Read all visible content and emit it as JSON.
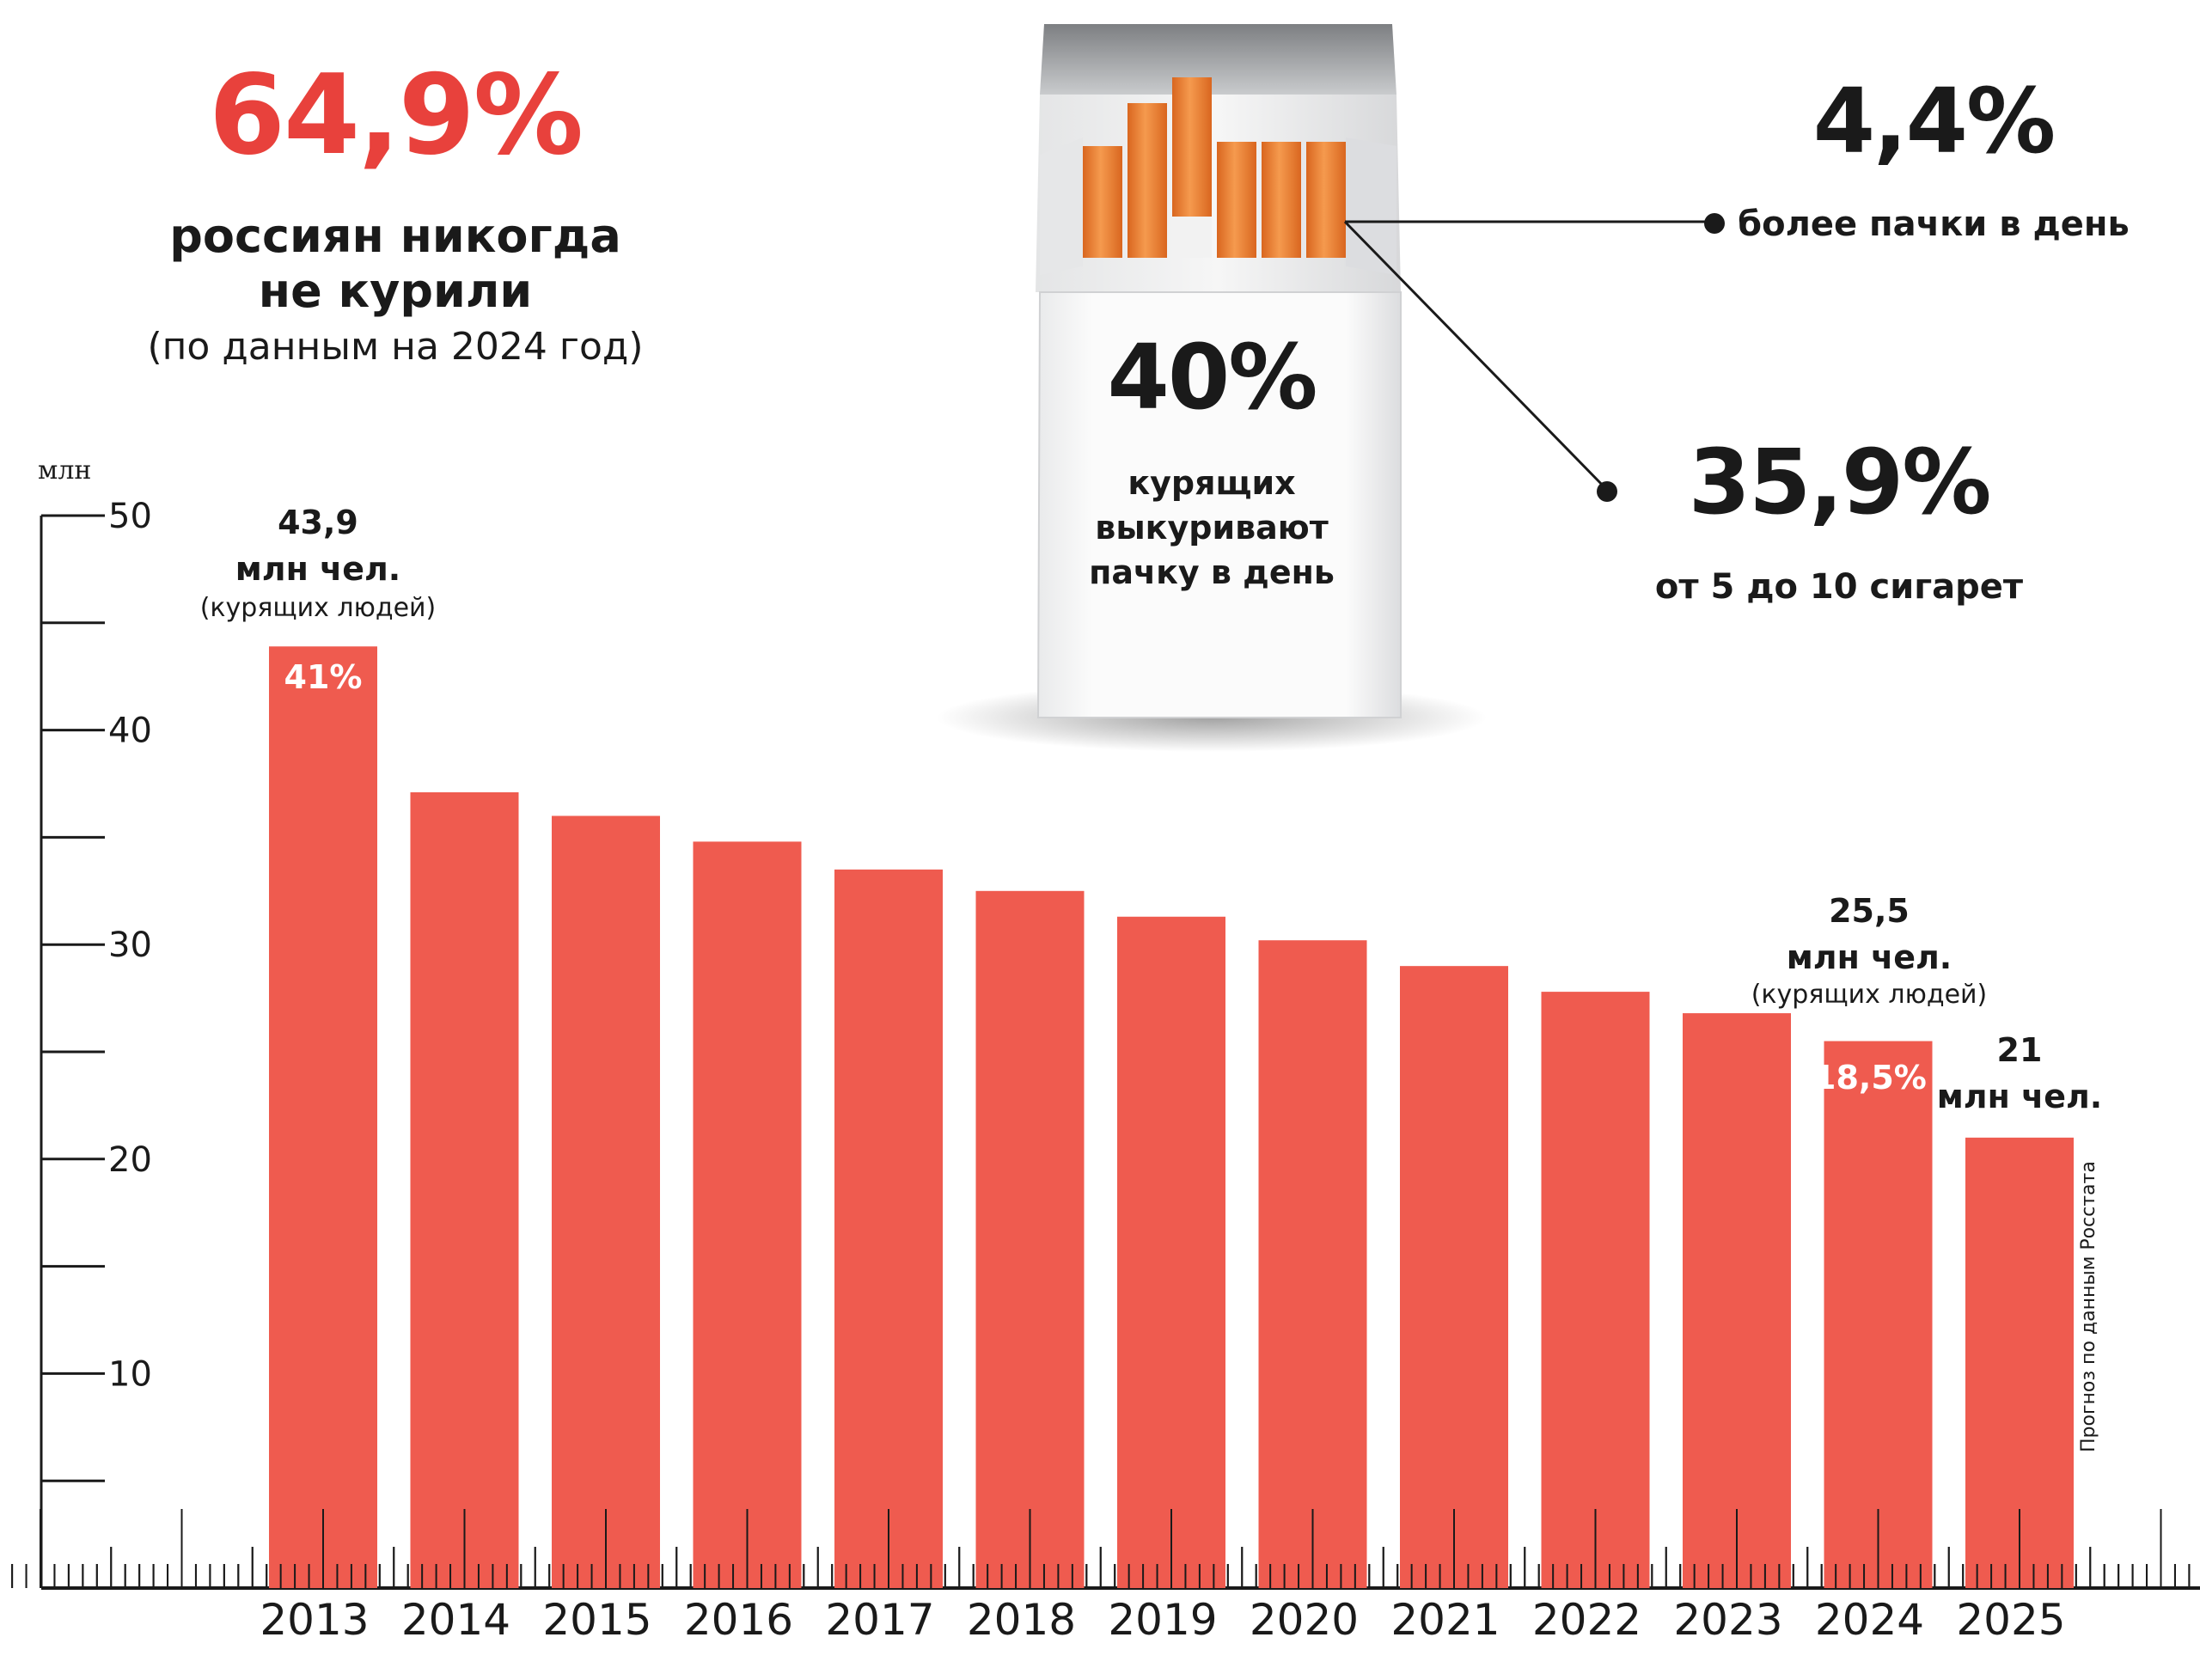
{
  "header": {
    "never_smoked_pct": "64,9%",
    "never_smoked_line1": "россиян никогда",
    "never_smoked_line2": "не курили",
    "never_smoked_note": "(по данным на 2024 год)"
  },
  "pack": {
    "pct": "40%",
    "line1": "курящих",
    "line2": "выкуривают",
    "line3": "пачку в день"
  },
  "stats": {
    "more_than_pack_pct": "4,4%",
    "more_than_pack_label": "более пачки в день",
    "five_to_ten_pct": "35,9%",
    "five_to_ten_label": "от 5 до 10 сигарет"
  },
  "annotations": {
    "y2013_value": "43,9",
    "y2013_unit": "млн чел.",
    "y2013_note": "(курящих людей)",
    "y2013_pct": "41%",
    "y2024_value": "25,5",
    "y2024_unit": "млн чел.",
    "y2024_note": "(курящих людей)",
    "y2024_pct": "18,5%",
    "y2025_value": "21",
    "y2025_unit": "млн чел.",
    "source": "Прогноз по данным Росстата"
  },
  "colors": {
    "bar": "#ef5b4f",
    "accent": "#e8413c",
    "cigarette": "#f08a3c"
  },
  "chart_data": {
    "type": "bar",
    "categories": [
      "2013",
      "2014",
      "2015",
      "2016",
      "2017",
      "2018",
      "2019",
      "2020",
      "2021",
      "2022",
      "2023",
      "2024",
      "2025"
    ],
    "values": [
      43.9,
      37.1,
      36.0,
      34.8,
      33.5,
      32.5,
      31.3,
      30.2,
      29.0,
      27.8,
      26.8,
      25.5,
      21.0
    ],
    "ylabel": "млн",
    "yticks": [
      "10",
      "20",
      "30",
      "40",
      "50"
    ],
    "ylim": [
      0,
      50
    ]
  }
}
